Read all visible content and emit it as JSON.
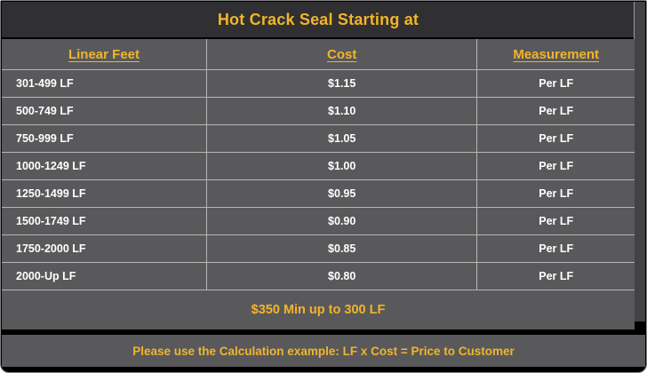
{
  "title": "Hot Crack Seal Starting at",
  "table": {
    "headers": {
      "linear_feet": "Linear Feet",
      "cost": "Cost",
      "measurement": "Measurement"
    },
    "rows": [
      {
        "range": "301-499 LF",
        "cost": "$1.15",
        "unit": "Per LF"
      },
      {
        "range": "500-749 LF",
        "cost": "$1.10",
        "unit": "Per LF"
      },
      {
        "range": "750-999 LF",
        "cost": "$1.05",
        "unit": "Per LF"
      },
      {
        "range": "1000-1249 LF",
        "cost": "$1.00",
        "unit": "Per LF"
      },
      {
        "range": "1250-1499 LF",
        "cost": "$0.95",
        "unit": "Per LF"
      },
      {
        "range": "1500-1749 LF",
        "cost": "$0.90",
        "unit": "Per LF"
      },
      {
        "range": "1750-2000 LF",
        "cost": "$0.85",
        "unit": "Per LF"
      },
      {
        "range": "2000-Up LF",
        "cost": "$0.80",
        "unit": "Per LF"
      }
    ],
    "minimum_note": "$350 Min up to 300 LF"
  },
  "calculation_note": "Please use the Calculation example: LF x Cost = Price to Customer",
  "colors": {
    "accent_yellow": "#F2B42A",
    "panel_gray": "#59595B",
    "title_bar_bg": "#303032",
    "divider": "#B6B6B6",
    "page_bg": "#000000",
    "row_text": "#FFFFFF"
  }
}
